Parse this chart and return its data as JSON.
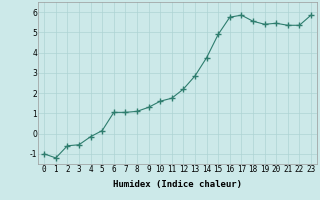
{
  "x": [
    0,
    1,
    2,
    3,
    4,
    5,
    6,
    7,
    8,
    9,
    10,
    11,
    12,
    13,
    14,
    15,
    16,
    17,
    18,
    19,
    20,
    21,
    22,
    23
  ],
  "y": [
    -1.0,
    -1.2,
    -0.6,
    -0.55,
    -0.15,
    0.15,
    1.05,
    1.05,
    1.1,
    1.3,
    1.6,
    1.75,
    2.2,
    2.85,
    3.75,
    4.9,
    5.75,
    5.85,
    5.55,
    5.4,
    5.45,
    5.35,
    5.35,
    5.85
  ],
  "line_color": "#2e7d6e",
  "marker": "+",
  "marker_size": 4.0,
  "linewidth": 0.8,
  "xlabel": "Humidex (Indice chaleur)",
  "ylabel": "",
  "xlim": [
    -0.5,
    23.5
  ],
  "ylim": [
    -1.5,
    6.5
  ],
  "yticks": [
    -1,
    0,
    1,
    2,
    3,
    4,
    5,
    6
  ],
  "xticks": [
    0,
    1,
    2,
    3,
    4,
    5,
    6,
    7,
    8,
    9,
    10,
    11,
    12,
    13,
    14,
    15,
    16,
    17,
    18,
    19,
    20,
    21,
    22,
    23
  ],
  "background_color": "#cce9e9",
  "grid_color": "#aed4d4",
  "xlabel_fontsize": 6.5,
  "tick_fontsize": 5.5
}
